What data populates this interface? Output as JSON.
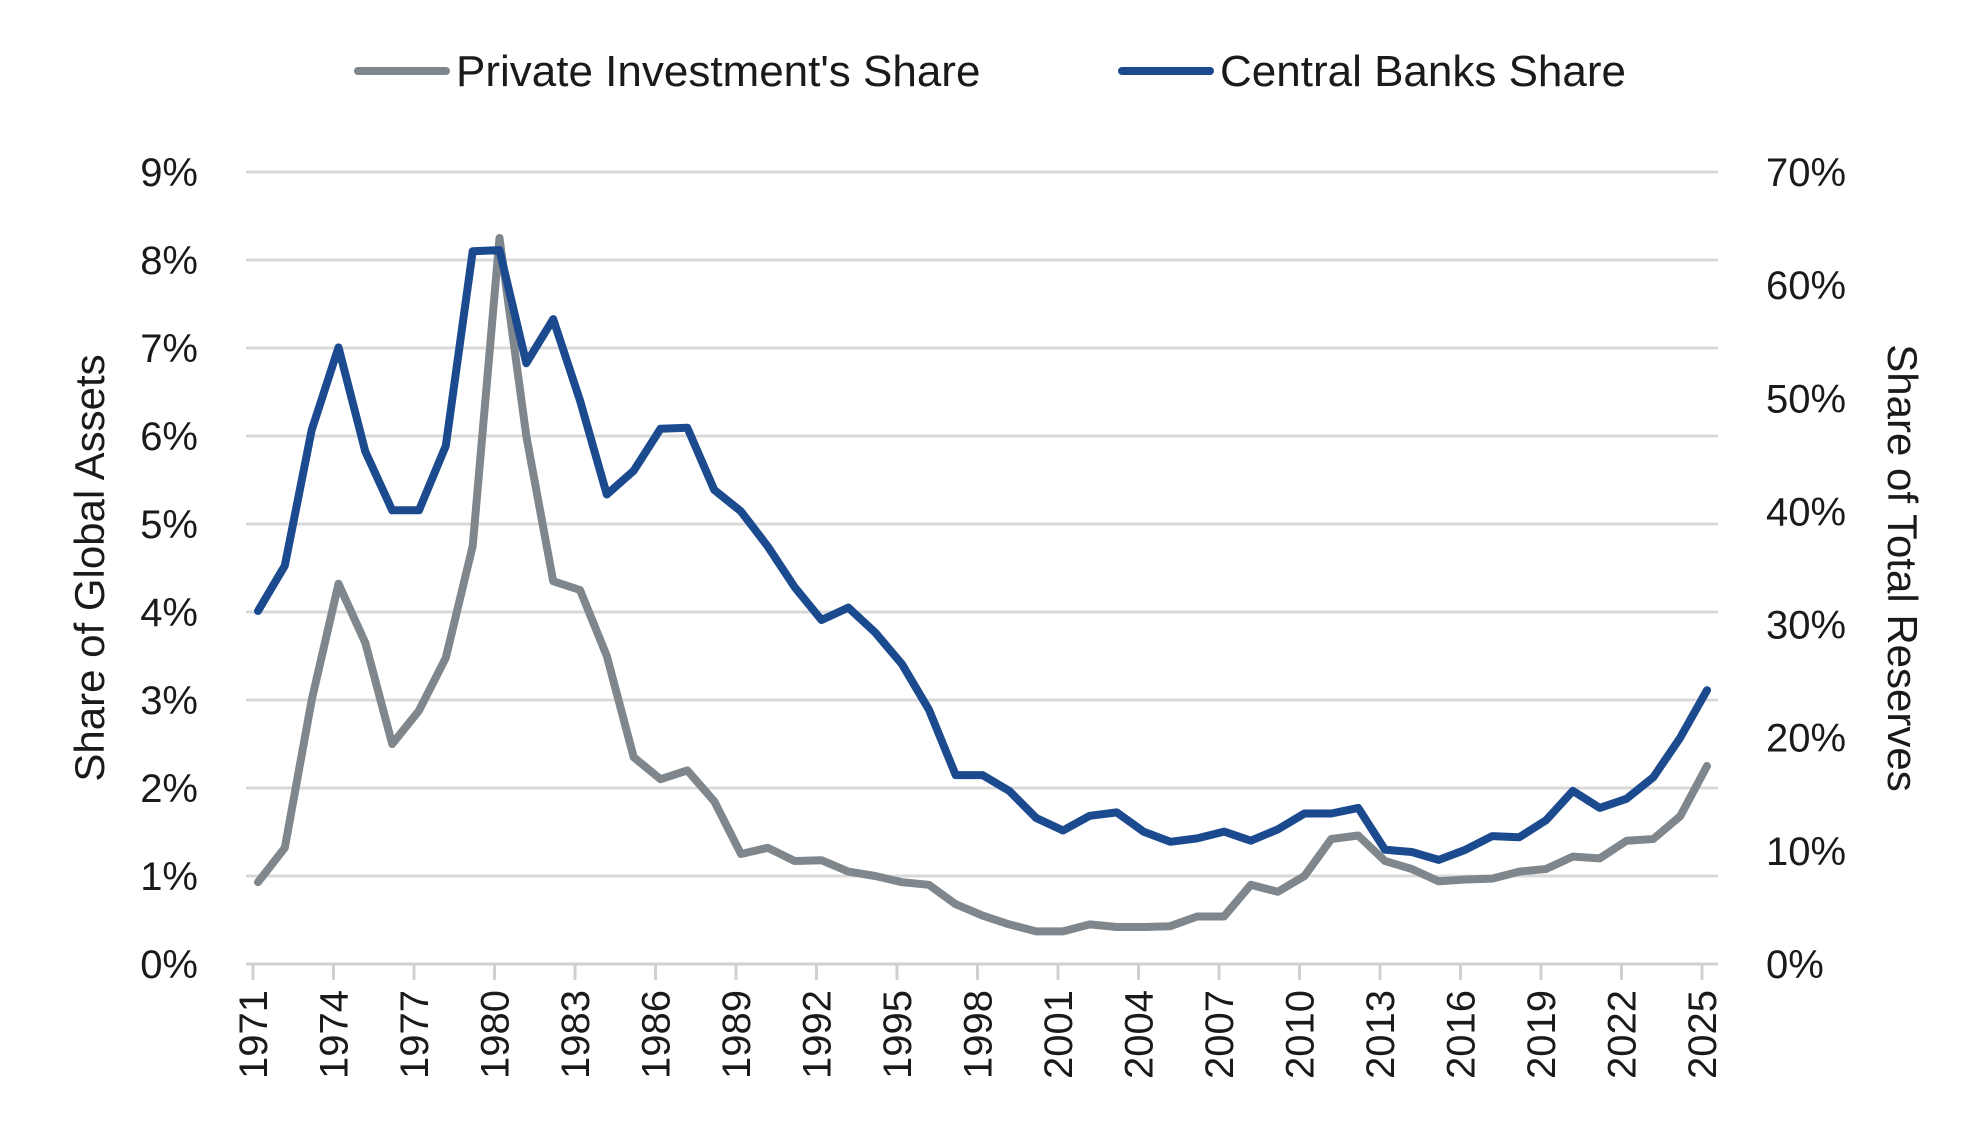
{
  "chart_data": {
    "type": "line",
    "legend_position": "top",
    "grid": true,
    "x": [
      1971,
      1972,
      1973,
      1974,
      1975,
      1976,
      1977,
      1978,
      1979,
      1980,
      1981,
      1982,
      1983,
      1984,
      1985,
      1986,
      1987,
      1988,
      1989,
      1990,
      1991,
      1992,
      1993,
      1994,
      1995,
      1996,
      1997,
      1998,
      1999,
      2000,
      2001,
      2002,
      2003,
      2004,
      2005,
      2006,
      2007,
      2008,
      2009,
      2010,
      2011,
      2012,
      2013,
      2014,
      2015,
      2016,
      2017,
      2018,
      2019,
      2020,
      2021,
      2022,
      2023,
      2024,
      2025
    ],
    "x_tick_labels": [
      "1971",
      "1974",
      "1977",
      "1980",
      "1983",
      "1986",
      "1989",
      "1992",
      "1995",
      "1998",
      "2001",
      "2004",
      "2007",
      "2010",
      "2013",
      "2016",
      "2019",
      "2022",
      "2025"
    ],
    "y_left": {
      "label": "Share of Global Assets",
      "range": [
        0,
        9
      ],
      "ticks": [
        "0%",
        "1%",
        "2%",
        "3%",
        "4%",
        "5%",
        "6%",
        "7%",
        "8%",
        "9%"
      ]
    },
    "y_right": {
      "label": "Share of Total Reserves",
      "range": [
        0,
        70
      ],
      "ticks": [
        "0%",
        "10%",
        "20%",
        "30%",
        "40%",
        "50%",
        "60%",
        "70%"
      ]
    },
    "series": [
      {
        "name": "Private Investment's Share",
        "axis": "left",
        "color": "#7f878c",
        "values": [
          0.93,
          1.32,
          3.0,
          4.32,
          3.65,
          2.5,
          2.88,
          3.48,
          4.75,
          8.25,
          6.0,
          4.35,
          4.25,
          3.5,
          2.35,
          2.1,
          2.2,
          1.85,
          1.25,
          1.32,
          1.17,
          1.18,
          1.05,
          1.0,
          0.93,
          0.9,
          0.68,
          0.55,
          0.45,
          0.37,
          0.37,
          0.45,
          0.42,
          0.42,
          0.43,
          0.54,
          0.54,
          0.9,
          0.82,
          1.0,
          1.42,
          1.46,
          1.17,
          1.08,
          0.94,
          0.96,
          0.97,
          1.05,
          1.08,
          1.22,
          1.2,
          1.4,
          1.42,
          1.68,
          2.25
        ]
      },
      {
        "name": "Central Banks Share",
        "axis": "right",
        "color": "#1b4a8f",
        "values": [
          31.2,
          35.2,
          47.2,
          54.5,
          45.3,
          40.1,
          40.1,
          45.8,
          63.0,
          63.1,
          53.1,
          57.0,
          49.8,
          41.5,
          43.6,
          47.3,
          47.4,
          41.9,
          40.0,
          36.9,
          33.3,
          30.4,
          31.5,
          29.3,
          26.5,
          22.5,
          16.7,
          16.7,
          15.3,
          12.9,
          11.8,
          13.1,
          13.4,
          11.7,
          10.8,
          11.1,
          11.7,
          10.9,
          11.9,
          13.3,
          13.3,
          13.8,
          10.1,
          9.9,
          9.2,
          10.1,
          11.3,
          11.2,
          12.7,
          15.3,
          13.8,
          14.6,
          16.5,
          20.0,
          24.2
        ]
      }
    ]
  }
}
